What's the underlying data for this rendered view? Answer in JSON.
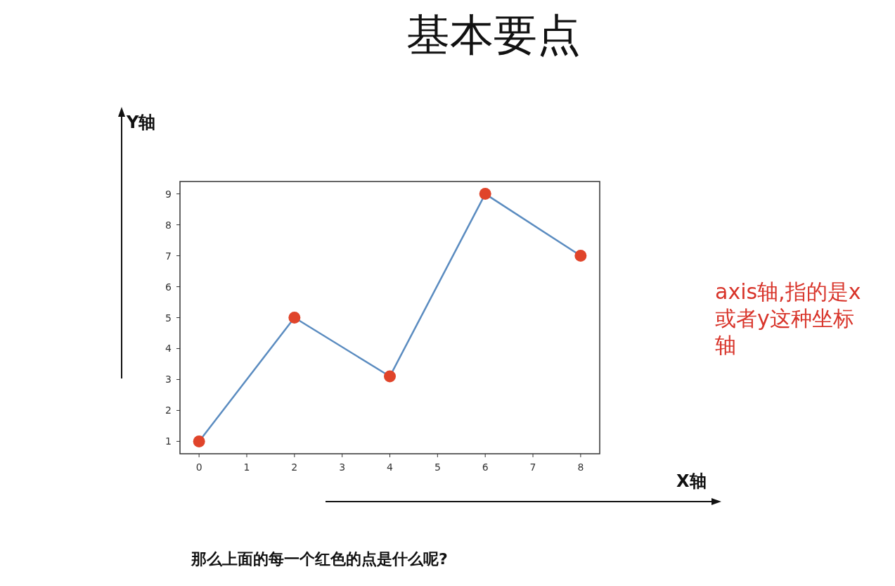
{
  "chart_data": {
    "type": "line",
    "title": "基本要点",
    "xlabel": "X轴",
    "ylabel": "Y轴",
    "x": [
      0,
      2,
      4,
      6,
      8
    ],
    "series": [
      {
        "color": "#5b8cc0",
        "colors": [
          "#e0442a",
          "#e0442a",
          "#e0442a",
          "#e0442a",
          "#e0442a"
        ],
        "values": [
          1,
          5,
          3.1,
          9,
          7
        ]
      }
    ],
    "marker": "circle",
    "xlim": [
      -0.4,
      8.4
    ],
    "ylim": [
      0.6,
      9.4
    ],
    "xticks": [
      0,
      1,
      2,
      3,
      4,
      5,
      6,
      7,
      8
    ],
    "yticks": [
      1,
      2,
      3,
      4,
      5,
      6,
      7,
      8,
      9
    ],
    "grid": false,
    "annotations": [
      "axis轴,指的是x或者y这种坐标轴",
      "那么上面的每一个红色的点是什么呢?"
    ]
  }
}
